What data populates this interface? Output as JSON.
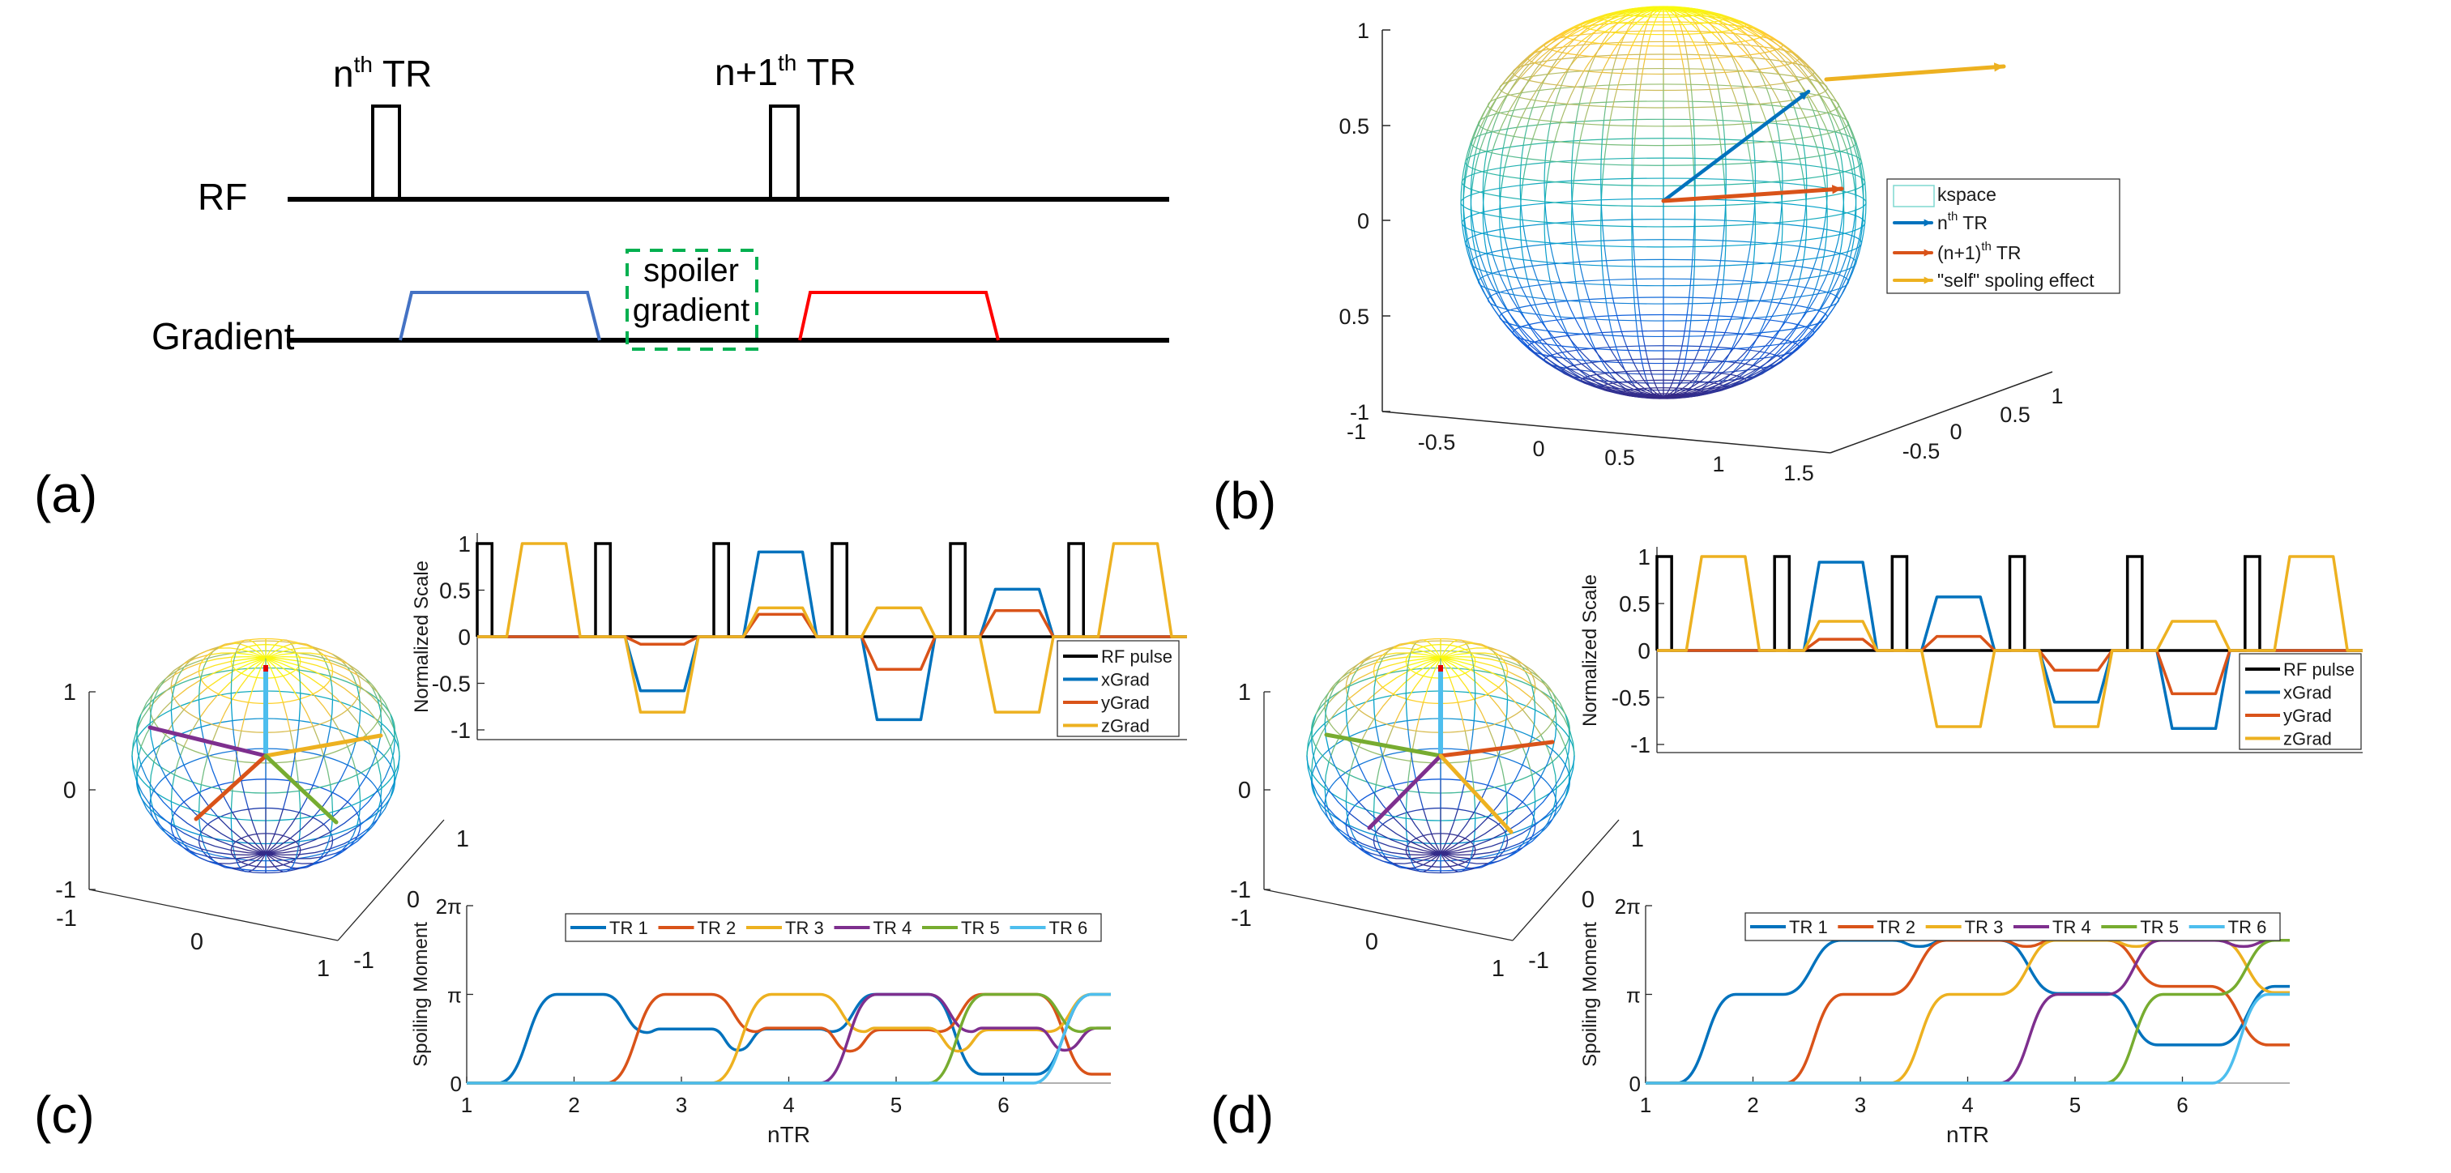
{
  "figure": {
    "labels": [
      "(a)",
      "(b)",
      "(c)",
      "(d)"
    ]
  },
  "panel_a": {
    "rf_label": "RF",
    "gradient_label": "Gradient",
    "pulse1": {
      "n": "n",
      "sup": "th",
      "tr": " TR"
    },
    "pulse2": {
      "n": "n+1",
      "sup": "th",
      "tr": " TR"
    },
    "spoiler_line1": "spoiler",
    "spoiler_line2": "gradient",
    "colors": {
      "first_gradient": "#4472C4",
      "second_gradient": "#FF0000",
      "spoiler_box": "#00B050",
      "rf": "#000000"
    }
  },
  "chart_data": [
    {
      "id": "b",
      "type": "surface3d",
      "title": "",
      "zticks": [
        "1",
        "0.5",
        "0",
        "0.5",
        "-1"
      ],
      "xticks": [
        "-1",
        "-0.5",
        "0",
        "0.5",
        "1",
        "1.5"
      ],
      "yticks": [
        "-0.5",
        "0",
        "0.5",
        "1"
      ],
      "surface": "kspace",
      "vectors": [
        {
          "name": "nth TR",
          "color": "#0072BD"
        },
        {
          "name": "(n+1)th TR",
          "color": "#D95319"
        },
        {
          "name": "self spoiling",
          "color": "#EDB120"
        }
      ],
      "legend": [
        {
          "label": "kspace",
          "sup": "",
          "rest": "",
          "color": "#7fd8d0"
        },
        {
          "label": "n",
          "sup": "th",
          "rest": " TR",
          "color": "#0072BD"
        },
        {
          "label": "(n+1)",
          "sup": "th",
          "rest": " TR",
          "color": "#D95319"
        },
        {
          "label": "\"self\" spoling effect",
          "sup": "",
          "rest": "",
          "color": "#EDB120"
        }
      ],
      "legend_position": "right"
    },
    {
      "id": "c_sphere",
      "type": "surface3d",
      "zticks": [
        "1",
        "0",
        "-1"
      ],
      "xticks": [
        "-1",
        "0",
        "1"
      ],
      "yticks": [
        "-1",
        "0",
        "1"
      ],
      "vector_colors": [
        "#4DBEEE",
        "#7E2F8E",
        "#EDB120",
        "#D95319",
        "#77AC30"
      ]
    },
    {
      "id": "c_grad",
      "type": "line",
      "ylabel": "Normalized Scale",
      "xlim": [
        0,
        6
      ],
      "ylim": [
        -1.1,
        1.1
      ],
      "yticks": [
        1,
        0.5,
        0,
        -0.5,
        -1
      ],
      "ytick_labels": [
        "1",
        "0.5",
        "0",
        "-0.5",
        "-1"
      ],
      "tr_period": 1,
      "rf_times": [
        0,
        1,
        2,
        3,
        4,
        5
      ],
      "rf_width": 0.125,
      "lobe_timing": [
        0.25,
        0.38,
        0.75,
        0.87
      ],
      "series": [
        {
          "name": "RF pulse",
          "color": "#000000"
        },
        {
          "name": "xGrad",
          "color": "#0072BD",
          "lobes": [
            0,
            -0.58,
            0.91,
            -0.89,
            0.51,
            0
          ]
        },
        {
          "name": "yGrad",
          "color": "#D95319",
          "lobes": [
            0,
            -0.08,
            0.24,
            -0.35,
            0.28,
            0
          ]
        },
        {
          "name": "zGrad",
          "color": "#EDB120",
          "lobes": [
            1,
            -0.81,
            0.31,
            0.31,
            -0.81,
            1
          ]
        }
      ],
      "legend_position": "bottom-right"
    },
    {
      "id": "c_spoil",
      "type": "line",
      "xlabel": "nTR",
      "ylabel": "Spoiling Moment",
      "xlim": [
        1,
        7
      ],
      "ylim_pi": [
        0,
        2
      ],
      "xticks": [
        "1",
        "2",
        "3",
        "4",
        "5",
        "6"
      ],
      "yticks": [
        "0",
        "π",
        "2π"
      ],
      "y_units": "pi",
      "series": [
        {
          "name": "TR 1",
          "color": "#0072BD",
          "points": [
            [
              1,
              0
            ],
            [
              1.29,
              0
            ],
            [
              1.84,
              1
            ],
            [
              2.27,
              1
            ],
            [
              2.68,
              0.57
            ],
            [
              2.8,
              0.61
            ],
            [
              3.28,
              0.61
            ],
            [
              3.53,
              0.37
            ],
            [
              3.79,
              0.61
            ],
            [
              4.29,
              0.61
            ],
            [
              4.4,
              0.58
            ],
            [
              4.8,
              1
            ],
            [
              5.3,
              1
            ],
            [
              5.8,
              0.1
            ],
            [
              6.31,
              0.1
            ],
            [
              6.82,
              1
            ],
            [
              7,
              1
            ]
          ]
        },
        {
          "name": "TR 2",
          "color": "#D95319",
          "points": [
            [
              1,
              0
            ],
            [
              2.3,
              0
            ],
            [
              2.85,
              1
            ],
            [
              3.28,
              1
            ],
            [
              3.69,
              0.58
            ],
            [
              3.8,
              0.62
            ],
            [
              4.29,
              0.62
            ],
            [
              4.57,
              0.36
            ],
            [
              4.85,
              0.6
            ],
            [
              5.3,
              0.6
            ],
            [
              5.4,
              0.58
            ],
            [
              5.8,
              1
            ],
            [
              6.31,
              1
            ],
            [
              6.82,
              0.1
            ],
            [
              7,
              0.1
            ]
          ]
        },
        {
          "name": "TR 3",
          "color": "#EDB120",
          "points": [
            [
              1,
              0
            ],
            [
              3.28,
              0
            ],
            [
              3.84,
              1
            ],
            [
              4.29,
              1
            ],
            [
              4.7,
              0.58
            ],
            [
              4.8,
              0.62
            ],
            [
              5.3,
              0.62
            ],
            [
              5.58,
              0.36
            ],
            [
              5.86,
              0.6
            ],
            [
              6.31,
              0.6
            ],
            [
              6.42,
              0.58
            ],
            [
              6.82,
              1
            ],
            [
              7,
              1
            ]
          ]
        },
        {
          "name": "TR 4",
          "color": "#7E2F8E",
          "points": [
            [
              1,
              0
            ],
            [
              4.29,
              0
            ],
            [
              4.82,
              1
            ],
            [
              5.3,
              1
            ],
            [
              5.7,
              0.58
            ],
            [
              5.8,
              0.62
            ],
            [
              6.31,
              0.62
            ],
            [
              6.57,
              0.37
            ],
            [
              6.87,
              0.62
            ],
            [
              7,
              0.62
            ]
          ]
        },
        {
          "name": "TR 5",
          "color": "#77AC30",
          "points": [
            [
              1,
              0
            ],
            [
              5.3,
              0
            ],
            [
              5.83,
              1
            ],
            [
              6.31,
              1
            ],
            [
              6.72,
              0.58
            ],
            [
              6.82,
              0.62
            ],
            [
              7,
              0.62
            ]
          ]
        },
        {
          "name": "TR 6",
          "color": "#4DBEEE",
          "points": [
            [
              1,
              0
            ],
            [
              6.28,
              0
            ],
            [
              6.82,
              1
            ],
            [
              7,
              1
            ]
          ]
        }
      ],
      "legend_position": "top"
    },
    {
      "id": "d_sphere",
      "type": "surface3d",
      "zticks": [
        "1",
        "0",
        "-1"
      ],
      "xticks": [
        "-1",
        "0",
        "1"
      ],
      "yticks": [
        "-1",
        "0",
        "1"
      ],
      "vector_colors": [
        "#4DBEEE",
        "#77AC30",
        "#D95319",
        "#7E2F8E",
        "#EDB120"
      ]
    },
    {
      "id": "d_grad",
      "type": "line",
      "ylabel": "Normalized Scale",
      "xlim": [
        0,
        6
      ],
      "ylim": [
        -1.1,
        1.1
      ],
      "yticks": [
        1,
        0.5,
        0,
        -0.5,
        -1
      ],
      "ytick_labels": [
        "1",
        "0.5",
        "0",
        "-0.5",
        "-1"
      ],
      "tr_period": 1,
      "rf_times": [
        0,
        1,
        2,
        3,
        4,
        5
      ],
      "rf_width": 0.125,
      "lobe_timing": [
        0.25,
        0.38,
        0.75,
        0.87
      ],
      "series": [
        {
          "name": "RF pulse",
          "color": "#000000"
        },
        {
          "name": "xGrad",
          "color": "#0072BD",
          "lobes": [
            0,
            0.94,
            0.57,
            -0.55,
            -0.83,
            0
          ]
        },
        {
          "name": "yGrad",
          "color": "#D95319",
          "lobes": [
            0,
            0.12,
            0.15,
            -0.21,
            -0.46,
            0
          ]
        },
        {
          "name": "zGrad",
          "color": "#EDB120",
          "lobes": [
            1,
            0.31,
            -0.81,
            -0.81,
            0.31,
            1
          ]
        }
      ],
      "legend_position": "bottom-right"
    },
    {
      "id": "d_spoil",
      "type": "line",
      "xlabel": "nTR",
      "ylabel": "Spoiling Moment",
      "xlim": [
        1,
        7
      ],
      "ylim_pi": [
        0,
        2
      ],
      "xticks": [
        "1",
        "2",
        "3",
        "4",
        "5",
        "6"
      ],
      "yticks": [
        "0",
        "π",
        "2π"
      ],
      "y_units": "pi",
      "series": [
        {
          "name": "TR 1",
          "color": "#0072BD",
          "points": [
            [
              1,
              0
            ],
            [
              1.29,
              0
            ],
            [
              1.84,
              1
            ],
            [
              2.28,
              1
            ],
            [
              2.82,
              1.61
            ],
            [
              3.3,
              1.61
            ],
            [
              3.55,
              1.54
            ],
            [
              3.8,
              1.61
            ],
            [
              4.3,
              1.61
            ],
            [
              4.84,
              1.01
            ],
            [
              5.3,
              1.01
            ],
            [
              5.77,
              0.43
            ],
            [
              6.34,
              0.43
            ],
            [
              6.86,
              1.09
            ],
            [
              7,
              1.09
            ]
          ]
        },
        {
          "name": "TR 2",
          "color": "#D95319",
          "points": [
            [
              1,
              0
            ],
            [
              2.3,
              0
            ],
            [
              2.84,
              1
            ],
            [
              3.28,
              1
            ],
            [
              3.8,
              1.61
            ],
            [
              4.3,
              1.61
            ],
            [
              4.55,
              1.54
            ],
            [
              4.8,
              1.61
            ],
            [
              5.3,
              1.61
            ],
            [
              5.82,
              1.09
            ],
            [
              6.26,
              1.09
            ],
            [
              6.8,
              0.43
            ],
            [
              7,
              0.43
            ]
          ]
        },
        {
          "name": "TR 3",
          "color": "#EDB120",
          "points": [
            [
              1,
              0
            ],
            [
              3.28,
              0
            ],
            [
              3.83,
              1
            ],
            [
              4.3,
              1
            ],
            [
              4.82,
              1.61
            ],
            [
              5.3,
              1.61
            ],
            [
              5.57,
              1.54
            ],
            [
              5.8,
              1.61
            ],
            [
              6.34,
              1.61
            ],
            [
              6.86,
              1.02
            ],
            [
              7,
              1.02
            ]
          ]
        },
        {
          "name": "TR 4",
          "color": "#7E2F8E",
          "points": [
            [
              1,
              0
            ],
            [
              4.3,
              0
            ],
            [
              4.84,
              1
            ],
            [
              5.3,
              1
            ],
            [
              5.8,
              1.61
            ],
            [
              6.3,
              1.61
            ],
            [
              6.57,
              1.54
            ],
            [
              6.83,
              1.61
            ],
            [
              7,
              1.61
            ]
          ]
        },
        {
          "name": "TR 5",
          "color": "#77AC30",
          "points": [
            [
              1,
              0
            ],
            [
              5.28,
              0
            ],
            [
              5.82,
              1
            ],
            [
              6.34,
              1
            ],
            [
              6.86,
              1.61
            ],
            [
              7,
              1.61
            ]
          ]
        },
        {
          "name": "TR 6",
          "color": "#4DBEEE",
          "points": [
            [
              1,
              0
            ],
            [
              6.28,
              0
            ],
            [
              6.8,
              1
            ],
            [
              7,
              1
            ]
          ]
        }
      ],
      "legend_position": "top"
    }
  ]
}
